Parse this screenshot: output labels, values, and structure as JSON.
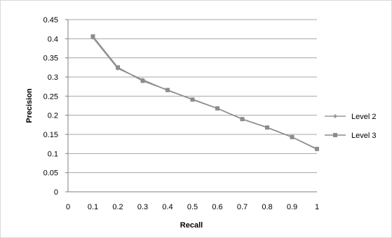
{
  "chart_data": {
    "type": "line",
    "xlabel": "Recall",
    "ylabel": "Precision",
    "xlim": [
      0,
      1
    ],
    "ylim": [
      0,
      0.45
    ],
    "x_ticks": [
      "0",
      "0.1",
      "0.2",
      "0.3",
      "0.4",
      "0.5",
      "0.6",
      "0.7",
      "0.8",
      "0.9",
      "1"
    ],
    "y_ticks": [
      "0",
      "0.05",
      "0.1",
      "0.15",
      "0.2",
      "0.25",
      "0.3",
      "0.35",
      "0.4",
      "0.45"
    ],
    "grid": "horizontal",
    "legend_position": "right",
    "x": [
      0.1,
      0.2,
      0.3,
      0.4,
      0.5,
      0.6,
      0.7,
      0.8,
      0.9,
      1.0
    ],
    "series": [
      {
        "name": "Level 2",
        "marker": "diamond",
        "color": "#9a9a9a",
        "values": [
          0.403,
          0.322,
          0.293,
          0.265,
          0.242,
          0.218,
          0.19,
          0.168,
          0.143,
          0.111
        ]
      },
      {
        "name": "Level 3",
        "marker": "square",
        "color": "#8c8c8c",
        "values": [
          0.406,
          0.325,
          0.29,
          0.266,
          0.241,
          0.218,
          0.19,
          0.168,
          0.143,
          0.112
        ]
      }
    ]
  }
}
